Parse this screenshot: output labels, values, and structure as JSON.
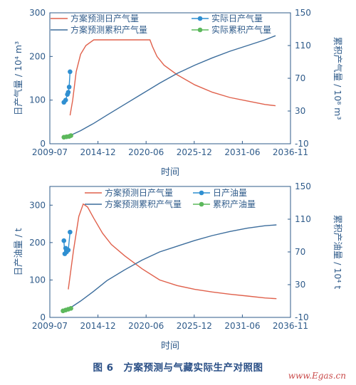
{
  "colors": {
    "axis": "#2f5b8a",
    "forecast_daily": "#e0614c",
    "forecast_cum": "#3c6d9c",
    "actual_daily": "#2f8fd1",
    "actual_cum": "#5cb85c",
    "caption": "#2a4f86",
    "watermark": "#c94a4a"
  },
  "figure_caption": "图 6　方案预测与气藏实际生产对照图",
  "watermark": "www.Egas.cn",
  "chart_data": [
    {
      "type": "line",
      "xlabel": "时间",
      "ylabel_left": "日产气量 / 10⁴ m³",
      "ylabel_right": "累积产气量 / 10⁸ m³",
      "x_ticks": [
        "2009-07",
        "2014-12",
        "2020-06",
        "2025-12",
        "2031-06",
        "2036-11"
      ],
      "xlim": [
        2009.5,
        2036.9
      ],
      "ylim_left": [
        0,
        300
      ],
      "yticks_left": [
        0,
        100,
        200,
        300
      ],
      "ylim_right": [
        -10,
        150
      ],
      "yticks_right": [
        -10,
        30,
        70,
        110,
        150
      ],
      "legend": "top, two columns",
      "series": [
        {
          "name": "方案预测日产气量",
          "axis": "left",
          "style": "line",
          "color": "#e0614c",
          "x": [
            2011.8,
            2012.1,
            2012.5,
            2013.0,
            2013.6,
            2014.5,
            2016,
            2018,
            2020.0,
            2020.9,
            2021.2,
            2021.7,
            2022.5,
            2024,
            2026,
            2028,
            2030,
            2032,
            2034,
            2035.2
          ],
          "y": [
            65,
            100,
            165,
            205,
            225,
            238,
            238,
            238,
            238,
            238,
            222,
            200,
            180,
            158,
            135,
            118,
            106,
            98,
            90,
            87
          ]
        },
        {
          "name": "方案预测累积产气量",
          "axis": "right",
          "style": "line",
          "color": "#3c6d9c",
          "x": [
            2011.8,
            2013,
            2014.5,
            2016,
            2018,
            2020,
            2022,
            2024,
            2026,
            2028,
            2030,
            2032,
            2034,
            2035.2
          ],
          "y": [
            0,
            6,
            15,
            25,
            38,
            51,
            64,
            76,
            86,
            95,
            103,
            110,
            117,
            122
          ]
        },
        {
          "name": "实际日产气量",
          "axis": "left",
          "style": "line-marker",
          "color": "#2f8fd1",
          "x": [
            2011.1,
            2011.3,
            2011.5,
            2011.6,
            2011.7,
            2011.8
          ],
          "y": [
            95,
            100,
            113,
            118,
            130,
            165
          ]
        },
        {
          "name": "实际累积产气量",
          "axis": "right",
          "style": "line-marker",
          "color": "#5cb85c",
          "x": [
            2011.1,
            2011.4,
            2011.7,
            2011.9
          ],
          "y": [
            -2,
            -1.5,
            -1,
            0
          ]
        }
      ]
    },
    {
      "type": "line",
      "xlabel": "时间",
      "ylabel_left": "日产油量 / t",
      "ylabel_right": "累积产油量 / 10⁴ t",
      "x_ticks": [
        "2009-07",
        "2014-12",
        "2020-06",
        "2025-12",
        "2031-06",
        "2036-11"
      ],
      "xlim": [
        2009.5,
        2036.9
      ],
      "ylim_left": [
        0,
        350
      ],
      "yticks_left": [
        0,
        100,
        200,
        300
      ],
      "ylim_right": [
        -10,
        150
      ],
      "yticks_right": [
        -10,
        30,
        70,
        110,
        150
      ],
      "legend": "top, two columns",
      "series": [
        {
          "name": "方案预测日产气量",
          "axis": "left",
          "style": "line",
          "color": "#e0614c",
          "x": [
            2011.6,
            2012.2,
            2012.8,
            2013.3,
            2013.8,
            2014.5,
            2015.5,
            2016.5,
            2018,
            2020,
            2022,
            2024,
            2026,
            2028,
            2030,
            2032,
            2034,
            2035.3
          ],
          "y": [
            75,
            180,
            270,
            303,
            295,
            265,
            225,
            195,
            165,
            130,
            100,
            85,
            75,
            68,
            62,
            57,
            52,
            50
          ]
        },
        {
          "name": "方案预测累积产气量",
          "axis": "right",
          "style": "line",
          "color": "#3c6d9c",
          "x": [
            2011.6,
            2013,
            2014.5,
            2016,
            2018,
            2020,
            2022,
            2024,
            2026,
            2028,
            2030,
            2032,
            2034,
            2035.3
          ],
          "y": [
            0,
            10,
            22,
            35,
            48,
            60,
            70,
            77,
            84,
            90,
            95,
            99,
            102,
            103
          ]
        },
        {
          "name": "日产油量",
          "axis": "left",
          "style": "line-marker",
          "color": "#2f8fd1",
          "x": [
            2011.1,
            2011.2,
            2011.3,
            2011.4,
            2011.5,
            2011.6,
            2011.8
          ],
          "y": [
            205,
            170,
            185,
            175,
            180,
            180,
            228
          ]
        },
        {
          "name": "累积产油量",
          "axis": "right",
          "style": "line-marker",
          "color": "#5cb85c",
          "x": [
            2011.0,
            2011.3,
            2011.6,
            2011.9
          ],
          "y": [
            -2,
            -1,
            0,
            1
          ]
        }
      ]
    }
  ]
}
